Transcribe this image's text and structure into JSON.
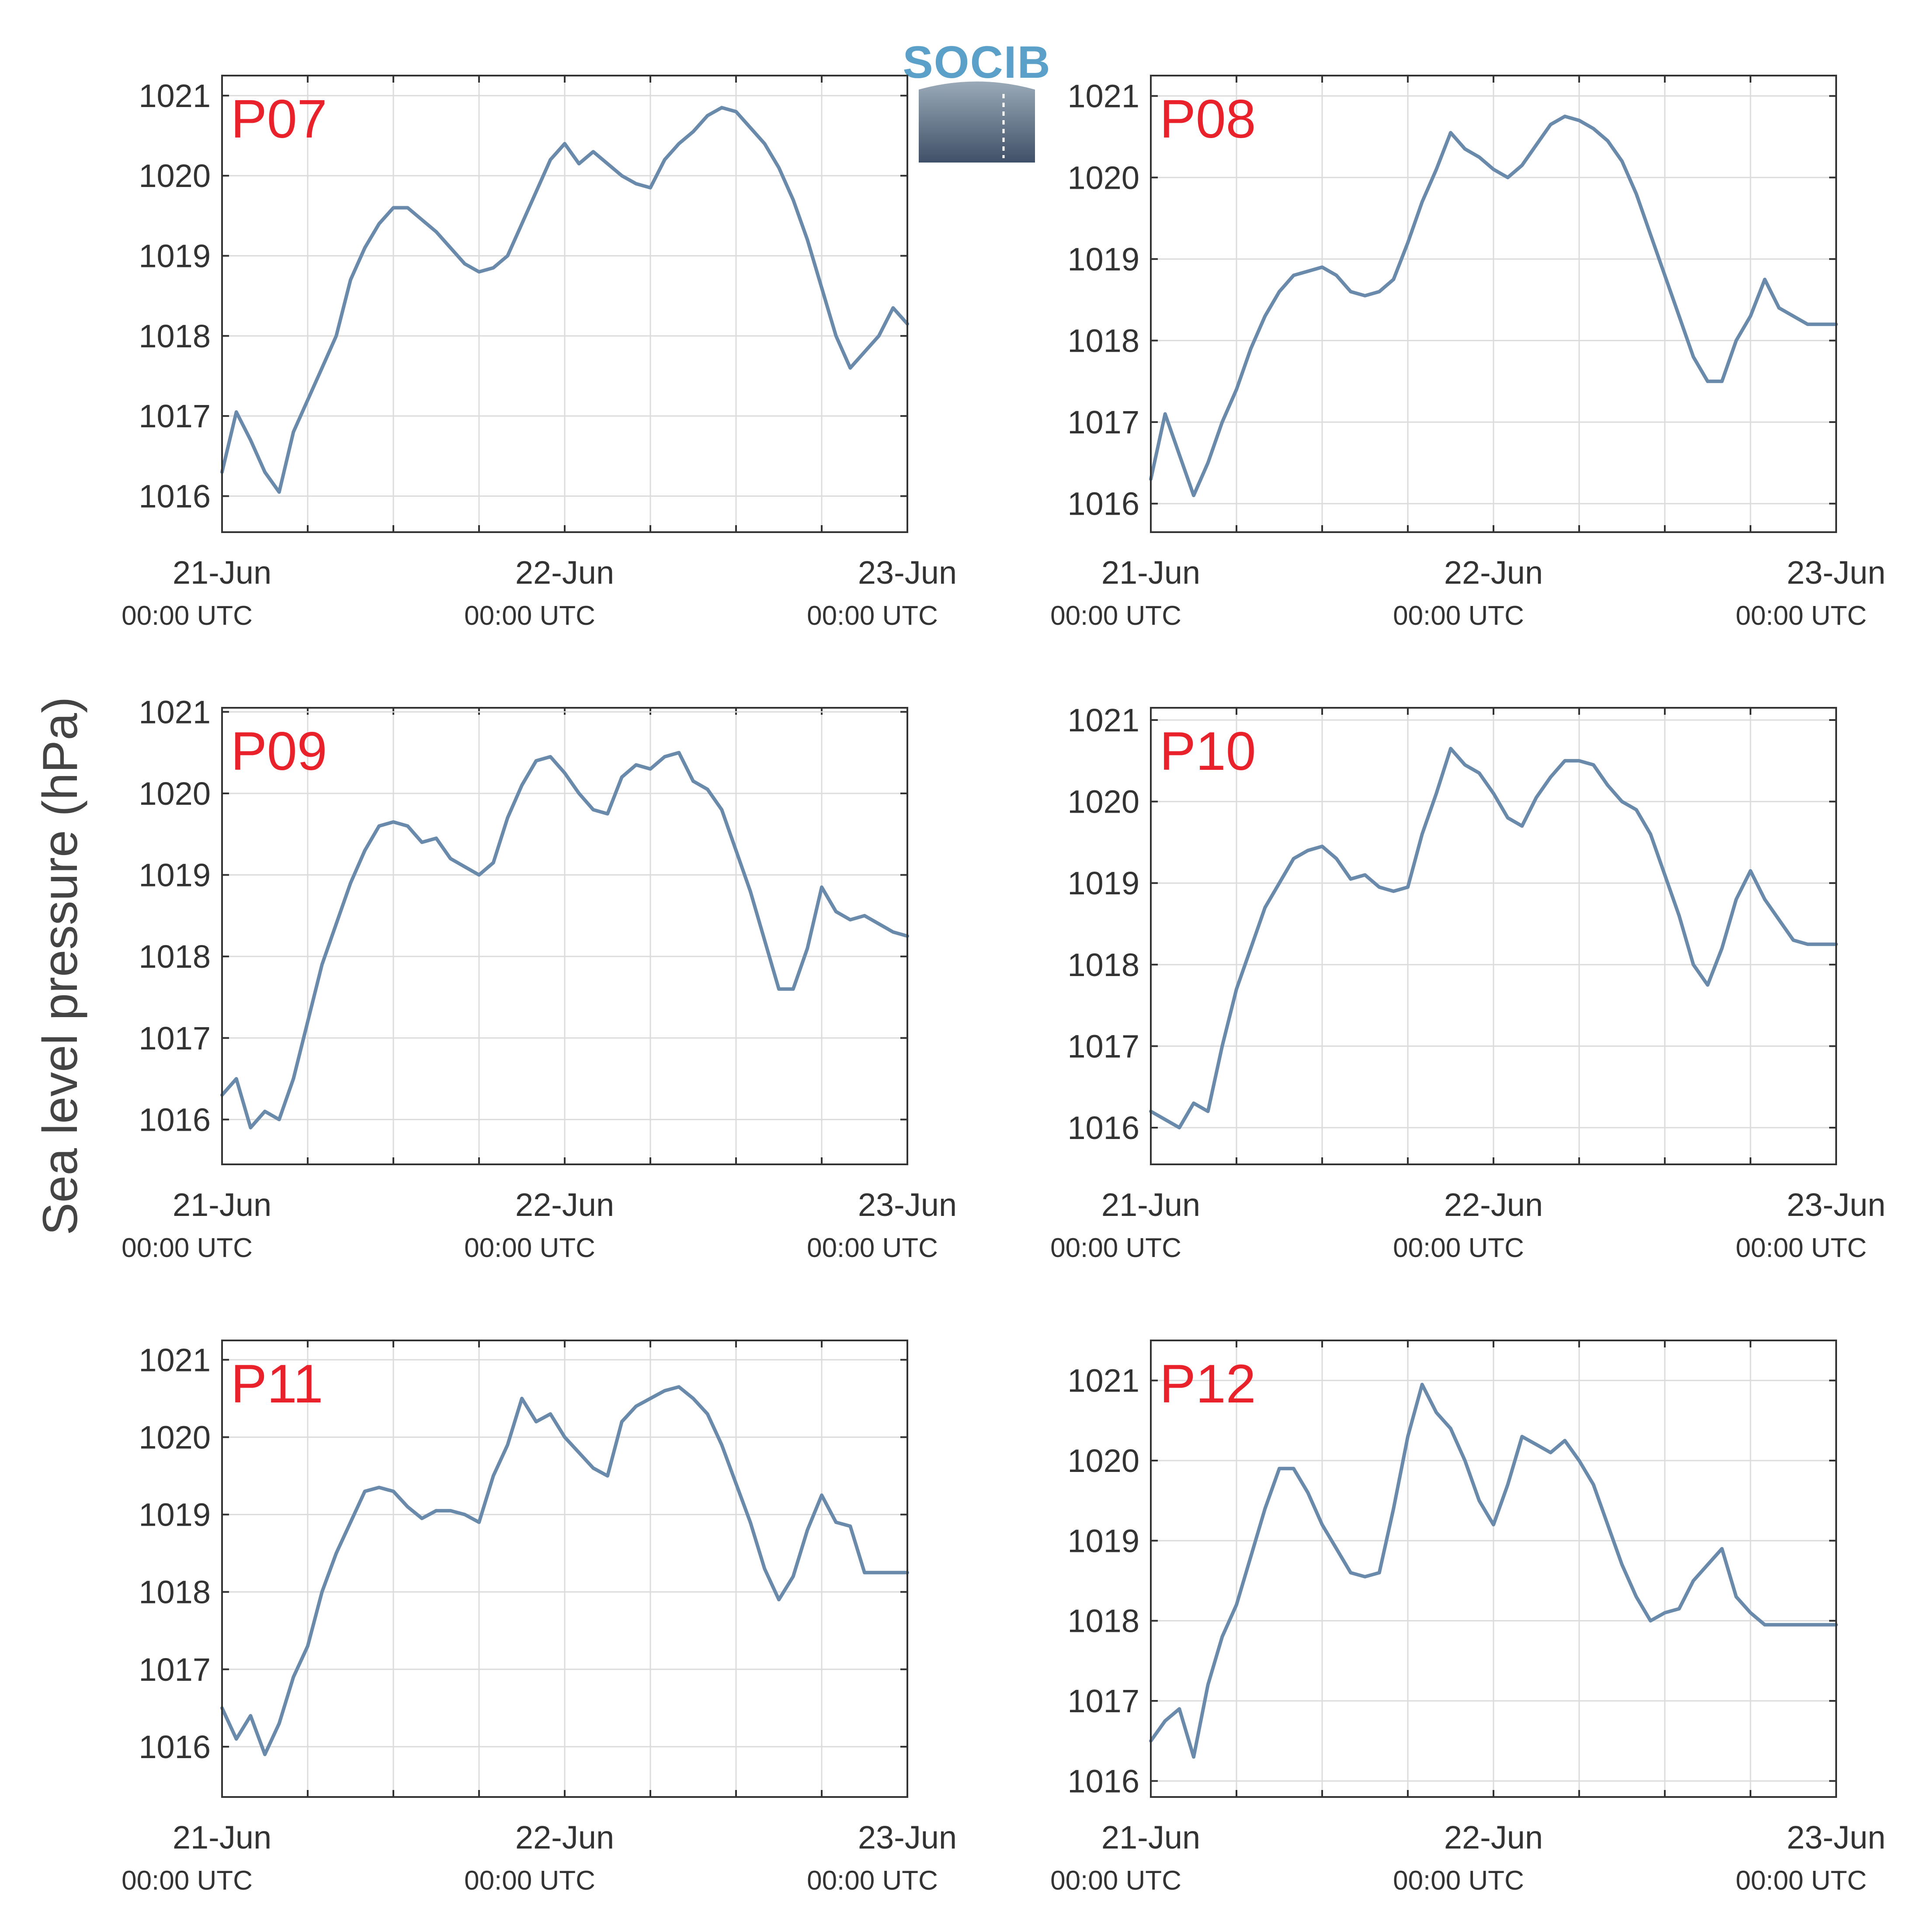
{
  "ylabel": "Sea level pressure (hPa)",
  "logo": {
    "text": "SOCIB",
    "colors": {
      "text": "#5aa0c8",
      "top": "#9aaab8",
      "bottom": "#3f5068"
    }
  },
  "colors": {
    "line": "#6a8aab",
    "station_label": "#e8212b",
    "grid": "#dcdcdc",
    "axis": "#333333"
  },
  "chart_data": [
    {
      "type": "line",
      "title": "P07",
      "ylim": [
        1015.55,
        1021.25
      ],
      "yticks": [
        1016,
        1017,
        1018,
        1019,
        1020,
        1021
      ],
      "xlim": [
        "2024-06-21 00:00",
        "2024-06-23 00:00"
      ],
      "xtick_labels": [
        "21-Jun",
        "22-Jun",
        "23-Jun"
      ],
      "xtick_sublabels": [
        "00:00 UTC",
        "00:00 UTC",
        "00:00 UTC"
      ],
      "series": [
        {
          "x_hours": [
            0,
            1,
            2,
            3,
            4,
            5,
            6,
            7,
            8,
            9,
            10,
            11,
            12,
            13,
            14,
            15,
            16,
            17,
            18,
            19,
            20,
            21,
            22,
            23,
            24,
            25,
            26,
            27,
            28,
            29,
            30,
            31,
            32,
            33,
            34,
            35,
            36,
            37,
            38,
            39,
            40,
            41,
            42,
            43,
            44,
            45,
            46,
            47,
            48
          ],
          "values": [
            1016.3,
            1017.05,
            1016.7,
            1016.3,
            1016.05,
            1016.8,
            1017.2,
            1017.6,
            1018.0,
            1018.7,
            1019.1,
            1019.4,
            1019.6,
            1019.6,
            1019.45,
            1019.3,
            1019.1,
            1018.9,
            1018.8,
            1018.85,
            1019.0,
            1019.4,
            1019.8,
            1020.2,
            1020.4,
            1020.15,
            1020.3,
            1020.15,
            1020.0,
            1019.9,
            1019.85,
            1020.2,
            1020.4,
            1020.55,
            1020.75,
            1020.85,
            1020.8,
            1020.6,
            1020.4,
            1020.1,
            1019.7,
            1019.2,
            1018.6,
            1018.0,
            1017.6,
            1017.8,
            1018.0,
            1018.35,
            1018.15
          ]
        }
      ]
    },
    {
      "type": "line",
      "title": "P08",
      "ylim": [
        1015.65,
        1021.25
      ],
      "yticks": [
        1016,
        1017,
        1018,
        1019,
        1020,
        1021
      ],
      "xlim": [
        "2024-06-21 00:00",
        "2024-06-23 00:00"
      ],
      "xtick_labels": [
        "21-Jun",
        "22-Jun",
        "23-Jun"
      ],
      "xtick_sublabels": [
        "00:00 UTC",
        "00:00 UTC",
        "00:00 UTC"
      ],
      "series": [
        {
          "x_hours": [
            0,
            1,
            2,
            3,
            4,
            5,
            6,
            7,
            8,
            9,
            10,
            11,
            12,
            13,
            14,
            15,
            16,
            17,
            18,
            19,
            20,
            21,
            22,
            23,
            24,
            25,
            26,
            27,
            28,
            29,
            30,
            31,
            32,
            33,
            34,
            35,
            36,
            37,
            38,
            39,
            40,
            41,
            42,
            43,
            44,
            45,
            46,
            47,
            48
          ],
          "values": [
            1016.3,
            1017.1,
            1016.6,
            1016.1,
            1016.5,
            1017.0,
            1017.4,
            1017.9,
            1018.3,
            1018.6,
            1018.8,
            1018.85,
            1018.9,
            1018.8,
            1018.6,
            1018.55,
            1018.6,
            1018.75,
            1019.2,
            1019.7,
            1020.1,
            1020.55,
            1020.35,
            1020.25,
            1020.1,
            1020.0,
            1020.15,
            1020.4,
            1020.65,
            1020.75,
            1020.7,
            1020.6,
            1020.45,
            1020.2,
            1019.8,
            1019.3,
            1018.8,
            1018.3,
            1017.8,
            1017.5,
            1017.5,
            1018.0,
            1018.3,
            1018.75,
            1018.4,
            1018.3,
            1018.2,
            1018.2,
            1018.2
          ]
        }
      ]
    },
    {
      "type": "line",
      "title": "P09",
      "ylim": [
        1015.45,
        1021.05
      ],
      "yticks": [
        1016,
        1017,
        1018,
        1019,
        1020,
        1021
      ],
      "xlim": [
        "2024-06-21 00:00",
        "2024-06-23 00:00"
      ],
      "xtick_labels": [
        "21-Jun",
        "22-Jun",
        "23-Jun"
      ],
      "xtick_sublabels": [
        "00:00 UTC",
        "00:00 UTC",
        "00:00 UTC"
      ],
      "series": [
        {
          "x_hours": [
            0,
            1,
            2,
            3,
            4,
            5,
            6,
            7,
            8,
            9,
            10,
            11,
            12,
            13,
            14,
            15,
            16,
            17,
            18,
            19,
            20,
            21,
            22,
            23,
            24,
            25,
            26,
            27,
            28,
            29,
            30,
            31,
            32,
            33,
            34,
            35,
            36,
            37,
            38,
            39,
            40,
            41,
            42,
            43,
            44,
            45,
            46,
            47,
            48
          ],
          "values": [
            1016.3,
            1016.5,
            1015.9,
            1016.1,
            1016.0,
            1016.5,
            1017.2,
            1017.9,
            1018.4,
            1018.9,
            1019.3,
            1019.6,
            1019.65,
            1019.6,
            1019.4,
            1019.45,
            1019.2,
            1019.1,
            1019.0,
            1019.15,
            1019.7,
            1020.1,
            1020.4,
            1020.45,
            1020.25,
            1020.0,
            1019.8,
            1019.75,
            1020.2,
            1020.35,
            1020.3,
            1020.45,
            1020.5,
            1020.15,
            1020.05,
            1019.8,
            1019.3,
            1018.8,
            1018.2,
            1017.6,
            1017.6,
            1018.1,
            1018.85,
            1018.55,
            1018.45,
            1018.5,
            1018.4,
            1018.3,
            1018.25
          ]
        }
      ]
    },
    {
      "type": "line",
      "title": "P10",
      "ylim": [
        1015.55,
        1021.15
      ],
      "yticks": [
        1016,
        1017,
        1018,
        1019,
        1020,
        1021
      ],
      "xlim": [
        "2024-06-21 00:00",
        "2024-06-23 00:00"
      ],
      "xtick_labels": [
        "21-Jun",
        "22-Jun",
        "23-Jun"
      ],
      "xtick_sublabels": [
        "00:00 UTC",
        "00:00 UTC",
        "00:00 UTC"
      ],
      "series": [
        {
          "x_hours": [
            0,
            1,
            2,
            3,
            4,
            5,
            6,
            7,
            8,
            9,
            10,
            11,
            12,
            13,
            14,
            15,
            16,
            17,
            18,
            19,
            20,
            21,
            22,
            23,
            24,
            25,
            26,
            27,
            28,
            29,
            30,
            31,
            32,
            33,
            34,
            35,
            36,
            37,
            38,
            39,
            40,
            41,
            42,
            43,
            44,
            45,
            46,
            47,
            48
          ],
          "values": [
            1016.2,
            1016.1,
            1016.0,
            1016.3,
            1016.2,
            1017.0,
            1017.7,
            1018.2,
            1018.7,
            1019.0,
            1019.3,
            1019.4,
            1019.45,
            1019.3,
            1019.05,
            1019.1,
            1018.95,
            1018.9,
            1018.95,
            1019.6,
            1020.1,
            1020.65,
            1020.45,
            1020.35,
            1020.1,
            1019.8,
            1019.7,
            1020.05,
            1020.3,
            1020.5,
            1020.5,
            1020.45,
            1020.2,
            1020.0,
            1019.9,
            1019.6,
            1019.1,
            1018.6,
            1018.0,
            1017.75,
            1018.2,
            1018.8,
            1019.15,
            1018.8,
            1018.55,
            1018.3,
            1018.25,
            1018.25,
            1018.25
          ]
        }
      ]
    },
    {
      "type": "line",
      "title": "P11",
      "ylim": [
        1015.35,
        1021.25
      ],
      "yticks": [
        1016,
        1017,
        1018,
        1019,
        1020,
        1021
      ],
      "xlim": [
        "2024-06-21 00:00",
        "2024-06-23 00:00"
      ],
      "xtick_labels": [
        "21-Jun",
        "22-Jun",
        "23-Jun"
      ],
      "xtick_sublabels": [
        "00:00 UTC",
        "00:00 UTC",
        "00:00 UTC"
      ],
      "series": [
        {
          "x_hours": [
            0,
            1,
            2,
            3,
            4,
            5,
            6,
            7,
            8,
            9,
            10,
            11,
            12,
            13,
            14,
            15,
            16,
            17,
            18,
            19,
            20,
            21,
            22,
            23,
            24,
            25,
            26,
            27,
            28,
            29,
            30,
            31,
            32,
            33,
            34,
            35,
            36,
            37,
            38,
            39,
            40,
            41,
            42,
            43,
            44,
            45,
            46,
            47,
            48
          ],
          "values": [
            1016.5,
            1016.1,
            1016.4,
            1015.9,
            1016.3,
            1016.9,
            1017.3,
            1018.0,
            1018.5,
            1018.9,
            1019.3,
            1019.35,
            1019.3,
            1019.1,
            1018.95,
            1019.05,
            1019.05,
            1019.0,
            1018.9,
            1019.5,
            1019.9,
            1020.5,
            1020.2,
            1020.3,
            1020.0,
            1019.8,
            1019.6,
            1019.5,
            1020.2,
            1020.4,
            1020.5,
            1020.6,
            1020.65,
            1020.5,
            1020.3,
            1019.9,
            1019.4,
            1018.9,
            1018.3,
            1017.9,
            1018.2,
            1018.8,
            1019.25,
            1018.9,
            1018.85,
            1018.25,
            1018.25,
            1018.25,
            1018.25
          ]
        }
      ]
    },
    {
      "type": "line",
      "title": "P12",
      "ylim": [
        1015.8,
        1021.5
      ],
      "yticks": [
        1016,
        1017,
        1018,
        1019,
        1020,
        1021
      ],
      "xlim": [
        "2024-06-21 00:00",
        "2024-06-23 00:00"
      ],
      "xtick_labels": [
        "21-Jun",
        "22-Jun",
        "23-Jun"
      ],
      "xtick_sublabels": [
        "00:00 UTC",
        "00:00 UTC",
        "00:00 UTC"
      ],
      "series": [
        {
          "x_hours": [
            0,
            1,
            2,
            3,
            4,
            5,
            6,
            7,
            8,
            9,
            10,
            11,
            12,
            13,
            14,
            15,
            16,
            17,
            18,
            19,
            20,
            21,
            22,
            23,
            24,
            25,
            26,
            27,
            28,
            29,
            30,
            31,
            32,
            33,
            34,
            35,
            36,
            37,
            38,
            39,
            40,
            41,
            42,
            43,
            44,
            45,
            46,
            47,
            48
          ],
          "values": [
            1016.5,
            1016.75,
            1016.9,
            1016.3,
            1017.2,
            1017.8,
            1018.2,
            1018.8,
            1019.4,
            1019.9,
            1019.9,
            1019.6,
            1019.2,
            1018.9,
            1018.6,
            1018.55,
            1018.6,
            1019.4,
            1020.3,
            1020.95,
            1020.6,
            1020.4,
            1020.0,
            1019.5,
            1019.2,
            1019.7,
            1020.3,
            1020.2,
            1020.1,
            1020.25,
            1020.0,
            1019.7,
            1019.2,
            1018.7,
            1018.3,
            1018.0,
            1018.1,
            1018.15,
            1018.5,
            1018.7,
            1018.9,
            1018.3,
            1018.1,
            1017.95,
            1017.95,
            1017.95,
            1017.95,
            1017.95,
            1017.95
          ]
        }
      ]
    }
  ]
}
